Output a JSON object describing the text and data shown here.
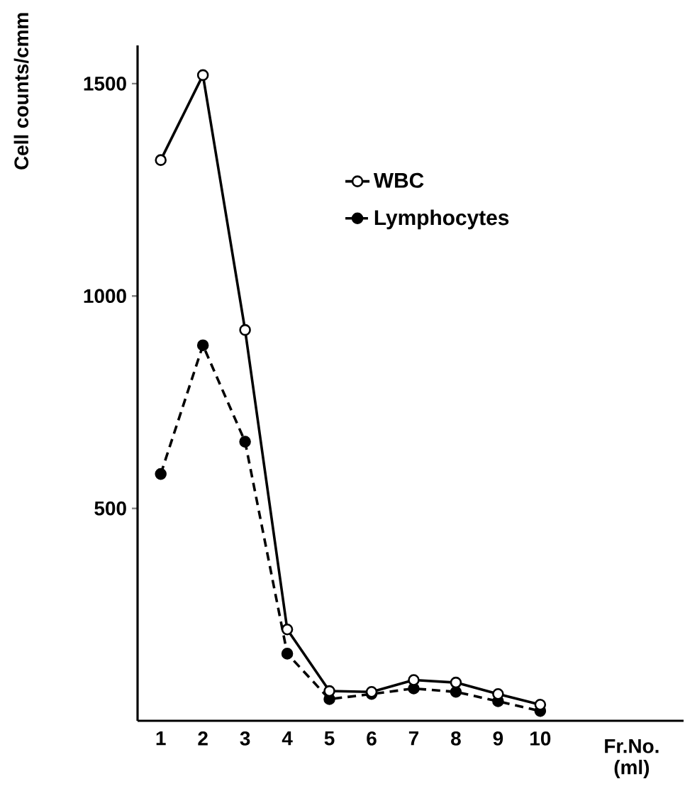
{
  "chart_data": {
    "type": "line",
    "xlabel": "Fr.No. (ml)",
    "ylabel": "Cell counts/cmm",
    "x": [
      1,
      2,
      3,
      4,
      5,
      6,
      7,
      8,
      9,
      10
    ],
    "series": [
      {
        "name": "WBC",
        "color": "#000000",
        "line_style": "solid",
        "values": [
          1320,
          1520,
          920,
          215,
          70,
          68,
          96,
          90,
          63,
          38
        ]
      },
      {
        "name": "Lymphocytes",
        "color": "#000000",
        "line_style": "dashed",
        "values": [
          581,
          884,
          657,
          158,
          51,
          63,
          76,
          68,
          46,
          23
        ]
      }
    ],
    "xlim": [
      0.45,
      13.4
    ],
    "ylim": [
      0,
      1590
    ],
    "xticks": [
      1,
      2,
      3,
      4,
      5,
      6,
      7,
      8,
      9,
      10
    ],
    "yticks": [
      500,
      1000,
      1500
    ],
    "marker": "circle",
    "legend": "top",
    "grid": false
  }
}
